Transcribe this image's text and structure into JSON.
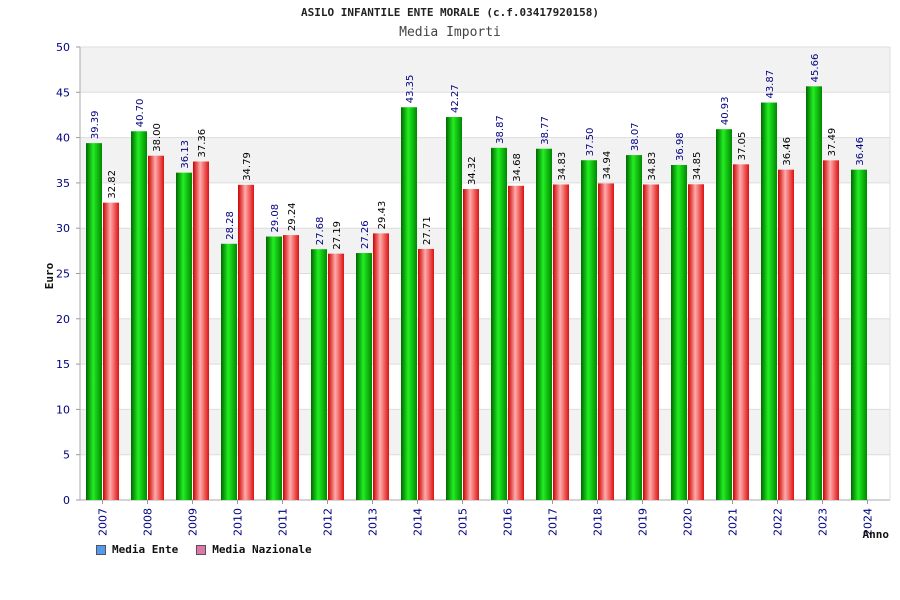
{
  "chart_data": {
    "type": "bar",
    "title": "ASILO INFANTILE ENTE MORALE (c.f.03417920158)",
    "subtitle": "Media Importi",
    "xlabel": "Anno",
    "ylabel": "Euro",
    "ylim": [
      0,
      50
    ],
    "yticks": [
      0,
      5,
      10,
      15,
      20,
      25,
      30,
      35,
      40,
      45,
      50
    ],
    "categories": [
      "2007",
      "2008",
      "2009",
      "2010",
      "2011",
      "2012",
      "2013",
      "2014",
      "2015",
      "2016",
      "2017",
      "2018",
      "2019",
      "2020",
      "2021",
      "2022",
      "2023",
      "2024"
    ],
    "series": [
      {
        "name": "Media Ente",
        "color": "#00aa00",
        "values": [
          39.39,
          40.7,
          36.13,
          28.28,
          29.08,
          27.68,
          27.26,
          43.35,
          42.27,
          38.87,
          38.77,
          37.5,
          38.07,
          36.98,
          40.93,
          43.87,
          45.66,
          36.46
        ]
      },
      {
        "name": "Media Nazionale",
        "color": "#ee2222",
        "values": [
          32.82,
          38.0,
          37.36,
          34.79,
          29.24,
          27.19,
          29.43,
          27.71,
          34.32,
          34.68,
          34.83,
          34.94,
          34.83,
          34.85,
          37.05,
          36.46,
          37.49,
          null
        ]
      }
    ],
    "labels": [
      [
        "39.39",
        "40.70",
        "36.13",
        "28.28",
        "29.08",
        "27.68",
        "27.26",
        "43.35",
        "42.27",
        "38.87",
        "38.77",
        "37.50",
        "38.07",
        "36.98",
        "40.93",
        "43.87",
        "45.66",
        "36.46"
      ],
      [
        "32.82",
        "38.00",
        "37.36",
        "34.79",
        "29.24",
        "27.19",
        "29.43",
        "27.71",
        "34.32",
        "34.68",
        "34.83",
        "34.94",
        "34.83",
        "34.85",
        "37.05",
        "36.46",
        "37.49",
        null
      ]
    ]
  },
  "legend": {
    "items": [
      {
        "label": "Media Ente",
        "color": "#5599ee"
      },
      {
        "label": "Media Nazionale",
        "color": "#dd77aa"
      }
    ]
  }
}
